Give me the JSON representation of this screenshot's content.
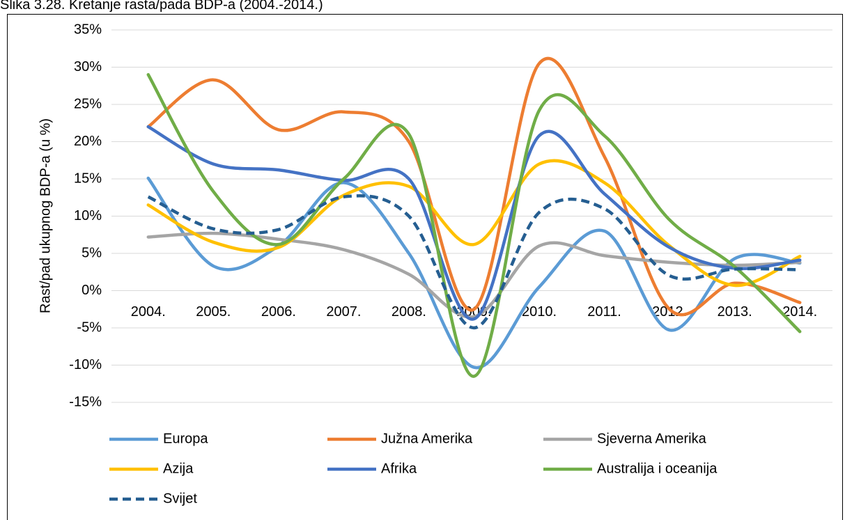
{
  "chart_data": {
    "type": "line",
    "title": "Slika 3.28. Kretanje rasta/pada BDP-a (2004.-2014.)",
    "y_label": "Rast/pad ukupnog BDP-a (u %)",
    "categories": [
      "2004.",
      "2005.",
      "2006.",
      "2007.",
      "2008.",
      "2009.",
      "2010.",
      "2011.",
      "2012.",
      "2013.",
      "2014."
    ],
    "series": [
      {
        "name": "Europa",
        "color": "#5b9bd5",
        "values": [
          15.1,
          3.3,
          6.0,
          14.5,
          5.0,
          -10.3,
          0.5,
          8.0,
          -5.3,
          4.3,
          3.7
        ]
      },
      {
        "name": "Južna Amerika",
        "color": "#ed7d31",
        "values": [
          22.0,
          28.3,
          21.6,
          24.0,
          20.0,
          -2.5,
          30.5,
          18.0,
          -2.5,
          1.0,
          -1.6
        ]
      },
      {
        "name": "Sjeverna Amerika",
        "color": "#a5a5a5",
        "values": [
          7.2,
          7.7,
          6.9,
          5.5,
          2.2,
          -3.5,
          6.0,
          4.7,
          3.8,
          3.4,
          3.8
        ]
      },
      {
        "name": "Azija",
        "color": "#ffc000",
        "values": [
          11.5,
          6.5,
          5.8,
          12.8,
          14.0,
          6.2,
          17.0,
          14.5,
          6.0,
          0.7,
          4.6
        ]
      },
      {
        "name": "Afrika",
        "color": "#4472c4",
        "values": [
          22.0,
          17.0,
          16.2,
          14.8,
          15.0,
          -3.8,
          20.8,
          13.0,
          5.8,
          3.0,
          4.1
        ]
      },
      {
        "name": "Australija i oceanija",
        "color": "#70ad47",
        "values": [
          29.0,
          13.3,
          6.2,
          15.0,
          21.0,
          -11.5,
          24.2,
          20.8,
          9.5,
          3.2,
          -5.5
        ]
      },
      {
        "name": "Svijet",
        "color": "#255e91",
        "line_style": "dashed",
        "values": [
          12.6,
          8.3,
          8.2,
          12.6,
          10.0,
          -5.0,
          10.5,
          11.0,
          2.0,
          2.9,
          2.8
        ]
      }
    ],
    "ylim": [
      -15,
      35
    ],
    "yticks": [
      {
        "value": -15,
        "label": "-15%"
      },
      {
        "value": -10,
        "label": "-10%"
      },
      {
        "value": -5,
        "label": "-5%"
      },
      {
        "value": 0,
        "label": "0%"
      },
      {
        "value": 5,
        "label": "5%"
      },
      {
        "value": 10,
        "label": "10%"
      },
      {
        "value": 15,
        "label": "15%"
      },
      {
        "value": 20,
        "label": "20%"
      },
      {
        "value": 25,
        "label": "25%"
      },
      {
        "value": 30,
        "label": "30%"
      },
      {
        "value": 35,
        "label": "35%"
      }
    ],
    "grid": true,
    "smooth": true,
    "legend": "bottom"
  }
}
